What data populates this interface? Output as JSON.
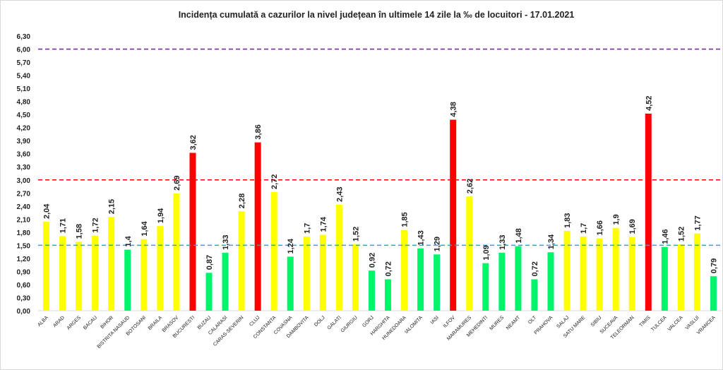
{
  "chart_data": {
    "type": "bar",
    "title": "Incidența cumulată a cazurilor la nivel județean în ultimele 14 zile la ‰ de locuitori - 17.01.2021",
    "xlabel": "",
    "ylabel": "",
    "ylim": [
      0,
      6.3
    ],
    "ytick_step": 0.3,
    "grid": false,
    "legend": "none",
    "categories": [
      "ALBA",
      "ARAD",
      "ARGES",
      "BACAU",
      "BIHOR",
      "BISTRITA NASAUD",
      "BOTOSANI",
      "BRAILA",
      "BRASOV",
      "BUCURESTI",
      "BUZAU",
      "CALARASI",
      "CARAS-SEVERIN",
      "CLUJ",
      "CONSTANTA",
      "COVASNA",
      "DAMBOVITA",
      "DOLJ",
      "GALATI",
      "GIURGIU",
      "GORJ",
      "HARGHITA",
      "HUNEDOARA",
      "IALOMITA",
      "IASI",
      "ILFOV",
      "MARAMURES",
      "MEHEDINTI",
      "MURES",
      "NEAMT",
      "OLT",
      "PRAHOVA",
      "SALAJ",
      "SATU MARE",
      "SIBIU",
      "SUCEAVA",
      "TELEORMAN",
      "TIMIS",
      "TULCEA",
      "VALCEA",
      "VASLUI",
      "VRANCEA"
    ],
    "values": [
      2.04,
      1.71,
      1.58,
      1.72,
      2.15,
      1.4,
      1.64,
      1.94,
      2.69,
      3.62,
      0.87,
      1.33,
      2.28,
      3.86,
      2.72,
      1.24,
      1.7,
      1.74,
      2.43,
      1.52,
      0.92,
      0.72,
      1.85,
      1.43,
      1.29,
      4.38,
      2.62,
      1.09,
      1.33,
      1.48,
      0.72,
      1.34,
      1.83,
      1.7,
      1.66,
      1.9,
      1.69,
      4.52,
      1.46,
      1.52,
      1.77,
      0.79
    ],
    "thresholds": [
      {
        "value": 6.0,
        "color": "#7030a0"
      },
      {
        "value": 3.0,
        "color": "#ff0000"
      },
      {
        "value": 1.5,
        "color": "#00b0f0"
      }
    ],
    "colors": {
      "low": "#00f56a",
      "mid": "#ffff00",
      "high": "#ff0000"
    }
  }
}
